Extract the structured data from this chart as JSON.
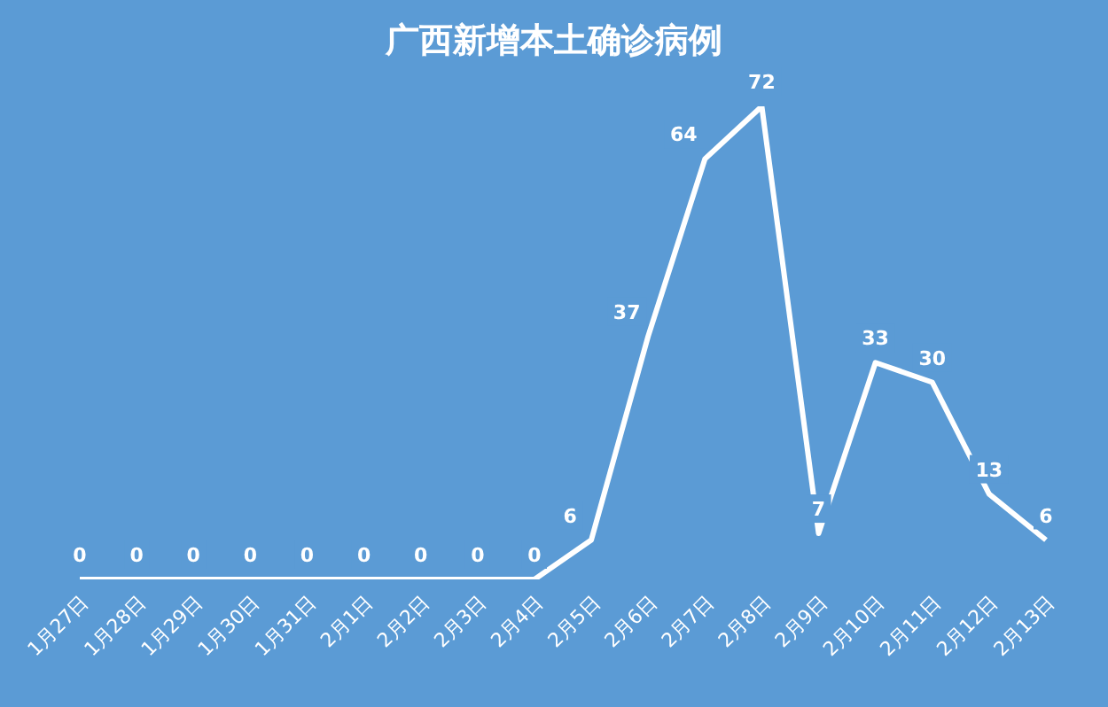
{
  "chart_data": {
    "type": "line",
    "title": "广西新增本土确诊病例",
    "categories": [
      "1月27日",
      "1月28日",
      "1月29日",
      "1月30日",
      "1月31日",
      "2月1日",
      "2月2日",
      "2月3日",
      "2月4日",
      "2月5日",
      "2月6日",
      "2月7日",
      "2月8日",
      "2月9日",
      "2月10日",
      "2月11日",
      "2月12日",
      "2月13日"
    ],
    "series": [
      {
        "color": "#ffffff",
        "values": [
          0,
          0,
          0,
          0,
          0,
          0,
          0,
          0,
          0,
          6,
          37,
          64,
          72,
          7,
          33,
          30,
          13,
          6
        ]
      }
    ],
    "data_labels": true,
    "tick_labels": "x",
    "grid": false,
    "legend": false,
    "marker": "none",
    "line_style": "solid"
  }
}
